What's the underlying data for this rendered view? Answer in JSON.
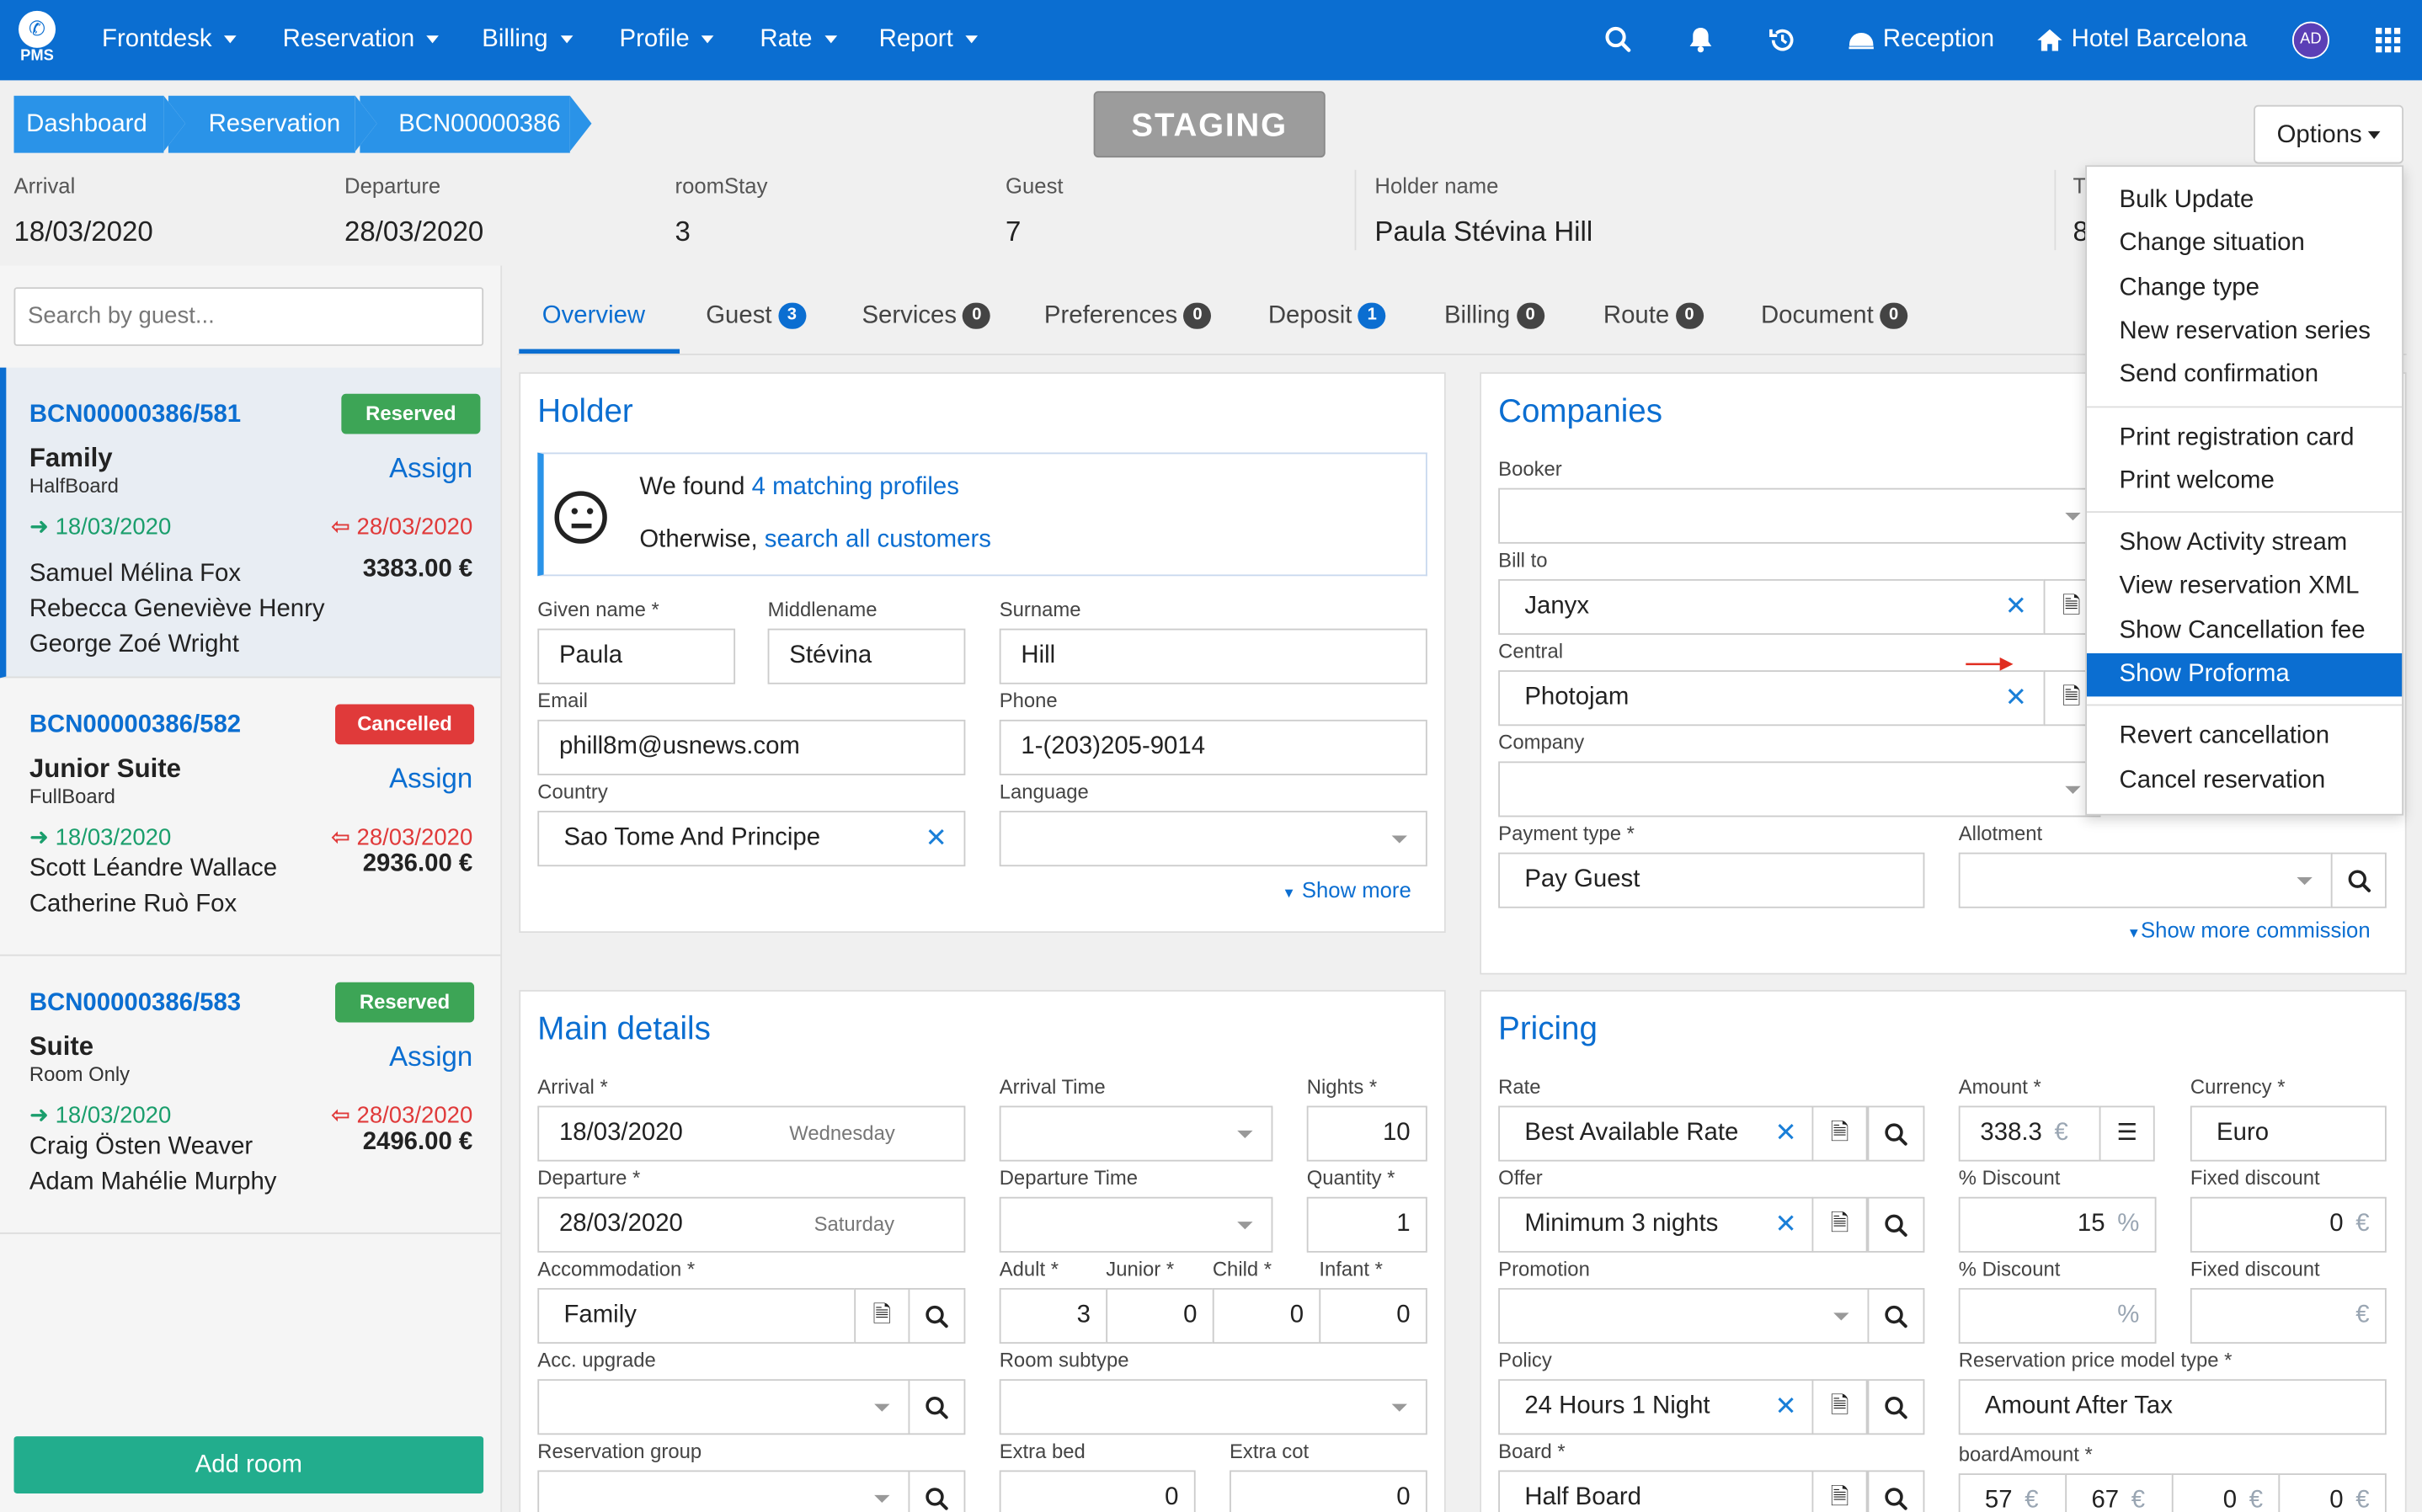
{
  "nav": {
    "logo_text": "PMS",
    "items": [
      "Frontdesk",
      "Reservation",
      "Billing",
      "Profile",
      "Rate",
      "Report"
    ],
    "reception": "Reception",
    "hotel": "Hotel Barcelona",
    "avatar": "AD"
  },
  "breadcrumb": [
    "Dashboard",
    "Reservation",
    "BCN00000386"
  ],
  "env_badge": "STAGING",
  "options_label": "Options",
  "info": {
    "arrival_label": "Arrival",
    "arrival": "18/03/2020",
    "departure_label": "Departure",
    "departure": "28/03/2020",
    "roomstay_label": "roomStay",
    "roomstay": "3",
    "guest_label": "Guest",
    "guest": "7",
    "holder_label": "Holder name",
    "holder": "Paula Stévina Hill",
    "cut_label": "T",
    "cut_value": "8"
  },
  "search_placeholder": "Search by guest...",
  "rooms": [
    {
      "code": "BCN00000386/581",
      "status": "Reserved",
      "status_color": "#3da556",
      "type": "Family",
      "board": "HalfBoard",
      "assign": "Assign",
      "arrival": "18/03/2020",
      "departure": "28/03/2020",
      "guests": [
        "Samuel Mélina Fox",
        "Rebecca Geneviève Henry",
        "George Zoé Wright"
      ],
      "amount": "3383.00 €"
    },
    {
      "code": "BCN00000386/582",
      "status": "Cancelled",
      "status_color": "#e03a3a",
      "type": "Junior Suite",
      "board": "FullBoard",
      "assign": "Assign",
      "arrival": "18/03/2020",
      "departure": "28/03/2020",
      "guests": [
        "Scott Léandre Wallace",
        "Catherine Ruò Fox"
      ],
      "amount": "2936.00 €"
    },
    {
      "code": "BCN00000386/583",
      "status": "Reserved",
      "status_color": "#3da556",
      "type": "Suite",
      "board": "Room Only",
      "assign": "Assign",
      "arrival": "18/03/2020",
      "departure": "28/03/2020",
      "guests": [
        "Craig Östen Weaver",
        "Adam Mahélie Murphy"
      ],
      "amount": "2496.00 €"
    }
  ],
  "add_room": "Add room",
  "tabs": [
    {
      "label": "Overview",
      "count": ""
    },
    {
      "label": "Guest",
      "count": "3"
    },
    {
      "label": "Services",
      "count": "0"
    },
    {
      "label": "Preferences",
      "count": "0"
    },
    {
      "label": "Deposit",
      "count": "1"
    },
    {
      "label": "Billing",
      "count": "0"
    },
    {
      "label": "Route",
      "count": "0"
    },
    {
      "label": "Document",
      "count": "0"
    }
  ],
  "holder": {
    "title": "Holder",
    "found_prefix": "We found ",
    "found_link": "4 matching profiles",
    "otherwise_prefix": "Otherwise, ",
    "otherwise_link": "search all customers",
    "given_label": "Given name *",
    "given": "Paula",
    "middle_label": "Middlename",
    "middle": "Stévina",
    "surname_label": "Surname",
    "surname": "Hill",
    "email_label": "Email",
    "email": "phill8m@usnews.com",
    "phone_label": "Phone",
    "phone": "1-(203)205-9014",
    "country_label": "Country",
    "country": "Sao Tome And Principe",
    "language_label": "Language",
    "language": "",
    "show_more": "Show more"
  },
  "companies": {
    "title": "Companies",
    "booker_label": "Booker",
    "booker": "",
    "billto_label": "Bill to",
    "billto": "Janyx",
    "central_label": "Central",
    "central": "Photojam",
    "company_label": "Company",
    "company": "",
    "payment_label": "Payment type *",
    "payment": "Pay Guest",
    "allotment_label": "Allotment",
    "allotment": "",
    "show_more_commission": "Show more commission"
  },
  "main_details": {
    "title": "Main details",
    "arrival_label": "Arrival *",
    "arrival": "18/03/2020",
    "arrival_day": "Wednesday",
    "arrival_time_label": "Arrival Time",
    "nights_label": "Nights *",
    "nights": "10",
    "departure_label": "Departure *",
    "departure": "28/03/2020",
    "departure_day": "Saturday",
    "departure_time_label": "Departure Time",
    "quantity_label": "Quantity *",
    "quantity": "1",
    "accommodation_label": "Accommodation *",
    "accommodation": "Family",
    "adult_label": "Adult *",
    "adult": "3",
    "junior_label": "Junior *",
    "junior": "0",
    "child_label": "Child *",
    "child": "0",
    "infant_label": "Infant *",
    "infant": "0",
    "upgrade_label": "Acc. upgrade",
    "subtype_label": "Room subtype",
    "group_label": "Reservation group",
    "extrabed_label": "Extra bed",
    "extrabed": "0",
    "extracot_label": "Extra cot",
    "extracot": "0"
  },
  "pricing": {
    "title": "Pricing",
    "rate_label": "Rate",
    "rate": "Best Available Rate",
    "amount_label": "Amount *",
    "amount": "338.3",
    "amount_unit": "€",
    "currency_label": "Currency *",
    "currency": "Euro",
    "offer_label": "Offer",
    "offer": "Minimum 3 nights",
    "pdisc_label": "% Discount",
    "pdisc": "15",
    "pdisc_unit": "%",
    "fdisc_label": "Fixed discount",
    "fdisc": "0",
    "fdisc_unit": "€",
    "promotion_label": "Promotion",
    "promotion": "",
    "pdisc2_label": "% Discount",
    "pdisc2": "",
    "pdisc2_unit": "%",
    "fdisc2_label": "Fixed discount",
    "fdisc2": "",
    "fdisc2_unit": "€",
    "policy_label": "Policy",
    "policy": "24 Hours 1 Night",
    "model_label": "Reservation price model type *",
    "model": "Amount After Tax",
    "board_label": "Board *",
    "board": "Half Board",
    "boardamount_label": "boardAmount *",
    "boardamounts": [
      "57",
      "67",
      "0",
      "0"
    ],
    "boardamount_unit": "€"
  },
  "options_menu": [
    [
      "Bulk Update",
      "Change situation",
      "Change type",
      "New reservation series",
      "Send confirmation"
    ],
    [
      "Print registration card",
      "Print welcome"
    ],
    [
      "Show Activity stream",
      "View reservation XML",
      "Show Cancellation fee",
      "Show Proforma"
    ],
    [
      "Revert cancellation",
      "Cancel reservation"
    ]
  ],
  "options_menu_selected": "Show Proforma",
  "colors": {
    "primary": "#0b6ed1",
    "nav": "#0b6ed1",
    "breadcrumb": "#2a93e8",
    "add_room": "#22ad8d",
    "annotation_arrow": "#e02d20"
  }
}
